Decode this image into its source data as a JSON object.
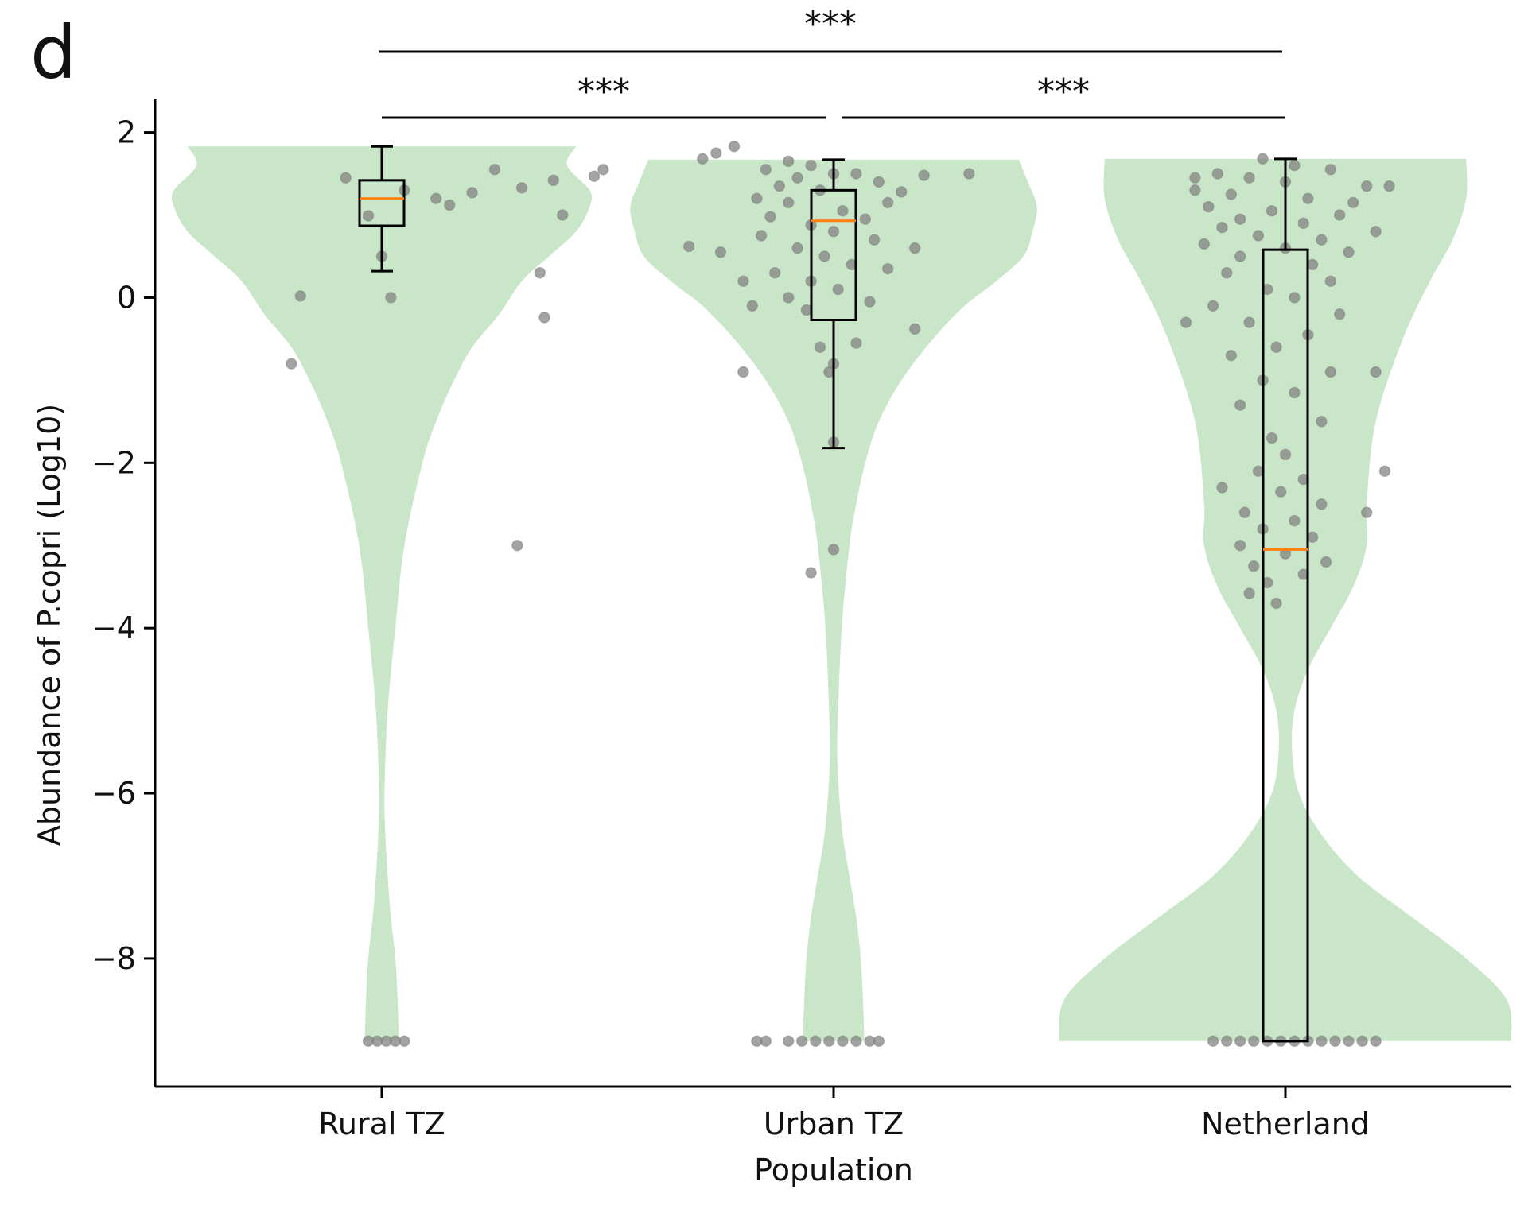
{
  "chart_data": {
    "type": "violin",
    "panel_label": "d",
    "xlabel": "Population",
    "ylabel": "Abundance of P.copri (Log10)",
    "categories": [
      "Rural TZ",
      "Urban TZ",
      "Netherland"
    ],
    "ylim": [
      -9.55,
      2.4
    ],
    "yticks": [
      2,
      0,
      -2,
      -4,
      -6,
      -8
    ],
    "ytick_labels": [
      "2",
      "0",
      "−2",
      "−4",
      "−6",
      "−8"
    ],
    "grid": false,
    "colors": {
      "violin_fill": "#c9e6c8",
      "points": "#7f7f7f",
      "box_edge": "#000000",
      "median": "#ff7f0e",
      "axis": "#000000"
    },
    "groups": [
      {
        "name": "Rural TZ",
        "box": {
          "whisker_low": 0.32,
          "q1": 0.87,
          "median": 1.2,
          "q3": 1.42,
          "whisker_high": 1.83
        },
        "violin": {
          "y": [
            1.83,
            1.6,
            1.3,
            1.1,
            0.8,
            0.5,
            0.2,
            -0.2,
            -0.6,
            -1.0,
            -1.5,
            -2.0,
            -3.0,
            -4.0,
            -5.0,
            -6.0,
            -6.5,
            -7.0,
            -7.5,
            -8.0,
            -8.5,
            -9.0
          ],
          "halfwidth": [
            0.43,
            0.41,
            0.46,
            0.46,
            0.43,
            0.37,
            0.31,
            0.26,
            0.2,
            0.16,
            0.12,
            0.09,
            0.05,
            0.03,
            0.013,
            0.006,
            0.008,
            0.013,
            0.02,
            0.03,
            0.035,
            0.038
          ]
        },
        "points": [
          [
            1.78,
            1.83
          ],
          [
            1.74,
            1.75
          ],
          [
            1.71,
            1.68
          ],
          [
            1.49,
            1.55
          ],
          [
            1.47,
            1.47
          ],
          [
            1.38,
            1.42
          ],
          [
            1.31,
            1.33
          ],
          [
            1.2,
            1.27
          ],
          [
            1.12,
            1.2
          ],
          [
            1.15,
            1.12
          ],
          [
            0.97,
            0.99
          ],
          [
            1.05,
            1.3
          ],
          [
            1.25,
            1.55
          ],
          [
            0.92,
            1.45
          ],
          [
            1.4,
            1.0
          ],
          [
            1.0,
            0.5
          ],
          [
            1.35,
            0.3
          ],
          [
            1.02,
            0.0
          ],
          [
            0.82,
            0.02
          ],
          [
            1.36,
            -0.24
          ],
          [
            0.8,
            -0.8
          ],
          [
            1.3,
            -3.0
          ],
          [
            0.97,
            -9.0
          ],
          [
            0.99,
            -9.0
          ],
          [
            1.01,
            -9.0
          ],
          [
            1.03,
            -9.0
          ],
          [
            1.05,
            -9.0
          ]
        ]
      },
      {
        "name": "Urban TZ",
        "box": {
          "whisker_low": -1.82,
          "q1": -0.27,
          "median": 0.93,
          "q3": 1.3,
          "whisker_high": 1.67
        },
        "violin": {
          "y": [
            1.67,
            1.4,
            1.1,
            0.8,
            0.5,
            0.2,
            -0.1,
            -0.5,
            -1.0,
            -1.5,
            -2.0,
            -2.5,
            -3.0,
            -4.0,
            -5.0,
            -5.5,
            -6.0,
            -6.5,
            -7.0,
            -7.5,
            -8.0,
            -8.5,
            -9.0
          ],
          "halfwidth": [
            0.41,
            0.43,
            0.45,
            0.44,
            0.42,
            0.36,
            0.29,
            0.22,
            0.15,
            0.1,
            0.07,
            0.05,
            0.035,
            0.018,
            0.01,
            0.008,
            0.012,
            0.02,
            0.035,
            0.05,
            0.06,
            0.065,
            0.068
          ]
        },
        "points": [
          [
            1.9,
            1.65
          ],
          [
            1.95,
            1.6
          ],
          [
            2.0,
            1.5
          ],
          [
            1.85,
            1.55
          ],
          [
            1.92,
            1.45
          ],
          [
            2.05,
            1.5
          ],
          [
            1.88,
            1.35
          ],
          [
            1.97,
            1.3
          ],
          [
            2.1,
            1.4
          ],
          [
            2.15,
            1.28
          ],
          [
            2.2,
            1.48
          ],
          [
            1.83,
            1.2
          ],
          [
            1.9,
            1.15
          ],
          [
            2.02,
            1.05
          ],
          [
            2.12,
            1.15
          ],
          [
            1.86,
            0.98
          ],
          [
            2.07,
            0.95
          ],
          [
            1.95,
            0.88
          ],
          [
            2.0,
            0.8
          ],
          [
            1.84,
            0.75
          ],
          [
            2.09,
            0.7
          ],
          [
            1.92,
            0.6
          ],
          [
            1.98,
            0.5
          ],
          [
            2.04,
            0.4
          ],
          [
            1.87,
            0.3
          ],
          [
            1.95,
            0.2
          ],
          [
            2.01,
            0.1
          ],
          [
            1.9,
            0.0
          ],
          [
            2.08,
            -0.05
          ],
          [
            1.94,
            -0.15
          ],
          [
            2.12,
            0.35
          ],
          [
            2.18,
            0.6
          ],
          [
            1.8,
            0.2
          ],
          [
            1.82,
            -0.1
          ],
          [
            1.97,
            -0.6
          ],
          [
            2.0,
            -0.8
          ],
          [
            1.99,
            -0.9
          ],
          [
            1.8,
            -0.9
          ],
          [
            2.05,
            -0.55
          ],
          [
            2.18,
            -0.38
          ],
          [
            1.75,
            0.55
          ],
          [
            2.3,
            1.5
          ],
          [
            1.68,
            0.62
          ],
          [
            2.0,
            -1.75
          ],
          [
            2.0,
            -3.05
          ],
          [
            1.95,
            -3.33
          ],
          [
            1.83,
            -9.0
          ],
          [
            1.85,
            -9.0
          ],
          [
            1.9,
            -9.0
          ],
          [
            1.93,
            -9.0
          ],
          [
            1.96,
            -9.0
          ],
          [
            1.99,
            -9.0
          ],
          [
            2.02,
            -9.0
          ],
          [
            2.05,
            -9.0
          ],
          [
            2.08,
            -9.0
          ],
          [
            2.1,
            -9.0
          ]
        ]
      },
      {
        "name": "Netherland",
        "box": {
          "whisker_low": -9.0,
          "q1": -9.0,
          "median": -3.05,
          "q3": 0.58,
          "whisker_high": 1.68
        },
        "violin": {
          "y": [
            1.68,
            1.2,
            0.7,
            0.2,
            -0.5,
            -1.5,
            -2.5,
            -3.0,
            -3.5,
            -4.0,
            -4.5,
            -5.0,
            -5.5,
            -6.0,
            -6.5,
            -7.0,
            -7.5,
            -8.0,
            -8.5,
            -9.0
          ],
          "halfwidth": [
            0.4,
            0.4,
            0.37,
            0.32,
            0.26,
            0.2,
            0.18,
            0.18,
            0.15,
            0.1,
            0.05,
            0.02,
            0.015,
            0.03,
            0.08,
            0.16,
            0.28,
            0.4,
            0.49,
            0.5
          ]
        },
        "points": [
          [
            2.95,
            1.68
          ],
          [
            3.02,
            1.6
          ],
          [
            3.1,
            1.55
          ],
          [
            2.85,
            1.5
          ],
          [
            2.92,
            1.45
          ],
          [
            3.0,
            1.4
          ],
          [
            3.18,
            1.35
          ],
          [
            2.8,
            1.3
          ],
          [
            2.88,
            1.25
          ],
          [
            3.05,
            1.2
          ],
          [
            3.15,
            1.15
          ],
          [
            2.83,
            1.1
          ],
          [
            2.97,
            1.05
          ],
          [
            3.12,
            1.0
          ],
          [
            2.9,
            0.95
          ],
          [
            3.04,
            0.9
          ],
          [
            2.86,
            0.85
          ],
          [
            3.2,
            0.8
          ],
          [
            2.94,
            0.75
          ],
          [
            3.08,
            0.7
          ],
          [
            2.82,
            0.65
          ],
          [
            3.0,
            0.6
          ],
          [
            3.14,
            0.55
          ],
          [
            2.9,
            0.5
          ],
          [
            3.06,
            0.4
          ],
          [
            2.87,
            0.3
          ],
          [
            3.1,
            0.2
          ],
          [
            2.96,
            0.1
          ],
          [
            3.02,
            0.0
          ],
          [
            2.84,
            -0.1
          ],
          [
            3.12,
            -0.2
          ],
          [
            2.92,
            -0.3
          ],
          [
            3.05,
            -0.45
          ],
          [
            2.98,
            -0.6
          ],
          [
            2.88,
            -0.7
          ],
          [
            3.1,
            -0.9
          ],
          [
            2.95,
            -1.0
          ],
          [
            3.02,
            -1.15
          ],
          [
            2.9,
            -1.3
          ],
          [
            3.08,
            -1.5
          ],
          [
            2.97,
            -1.7
          ],
          [
            3.0,
            -1.9
          ],
          [
            2.94,
            -2.1
          ],
          [
            3.04,
            -2.2
          ],
          [
            2.86,
            -2.3
          ],
          [
            2.99,
            -2.35
          ],
          [
            3.08,
            -2.5
          ],
          [
            2.91,
            -2.6
          ],
          [
            3.02,
            -2.7
          ],
          [
            2.95,
            -2.8
          ],
          [
            3.06,
            -2.9
          ],
          [
            2.9,
            -3.0
          ],
          [
            3.0,
            -3.1
          ],
          [
            3.09,
            -3.2
          ],
          [
            2.93,
            -3.25
          ],
          [
            3.04,
            -3.35
          ],
          [
            2.96,
            -3.45
          ],
          [
            2.92,
            -3.58
          ],
          [
            2.98,
            -3.7
          ],
          [
            3.2,
            -0.9
          ],
          [
            3.22,
            -2.1
          ],
          [
            3.18,
            -2.6
          ],
          [
            2.78,
            -0.3
          ],
          [
            2.8,
            1.45
          ],
          [
            3.23,
            1.35
          ],
          [
            2.84,
            -9.0
          ],
          [
            2.87,
            -9.0
          ],
          [
            2.9,
            -9.0
          ],
          [
            2.93,
            -9.0
          ],
          [
            2.96,
            -9.0
          ],
          [
            2.99,
            -9.0
          ],
          [
            3.02,
            -9.0
          ],
          [
            3.05,
            -9.0
          ],
          [
            3.08,
            -9.0
          ],
          [
            3.11,
            -9.0
          ],
          [
            3.14,
            -9.0
          ],
          [
            3.17,
            -9.0
          ],
          [
            3.2,
            -9.0
          ]
        ]
      }
    ],
    "significance": [
      {
        "from": "Rural TZ",
        "to": "Urban TZ",
        "label": "***"
      },
      {
        "from": "Urban TZ",
        "to": "Netherland",
        "label": "***"
      },
      {
        "from": "Rural TZ",
        "to": "Netherland",
        "label": "***"
      }
    ]
  }
}
